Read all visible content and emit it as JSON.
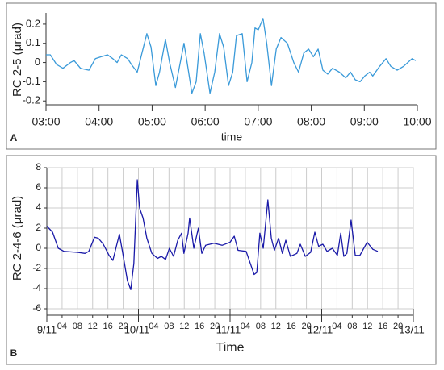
{
  "chart_data": [
    {
      "type": "line",
      "panel": "A",
      "ylabel": "RC 2-5 (μrad)",
      "xlabel": "time",
      "xlim": [
        3,
        10
      ],
      "ylim": [
        -0.22,
        0.25
      ],
      "xticks": [
        {
          "value": 3,
          "label": "03:00"
        },
        {
          "value": 4,
          "label": "04:00"
        },
        {
          "value": 5,
          "label": "05:00"
        },
        {
          "value": 6,
          "label": "06:00"
        },
        {
          "value": 7,
          "label": "07:00"
        },
        {
          "value": 8,
          "label": "08:00"
        },
        {
          "value": 9,
          "label": "09:00"
        },
        {
          "value": 10,
          "label": "10:00"
        }
      ],
      "yticks": [
        -0.2,
        -0.1,
        0,
        0.1,
        0.2
      ],
      "grid": false,
      "color": "#3a9ad9",
      "x": [
        3.0,
        3.08,
        3.2,
        3.32,
        3.46,
        3.53,
        3.65,
        3.81,
        3.93,
        4.04,
        4.16,
        4.26,
        4.34,
        4.42,
        4.54,
        4.61,
        4.72,
        4.81,
        4.9,
        4.98,
        5.07,
        5.14,
        5.25,
        5.33,
        5.44,
        5.53,
        5.6,
        5.66,
        5.75,
        5.83,
        5.91,
        5.98,
        6.09,
        6.18,
        6.27,
        6.35,
        6.44,
        6.52,
        6.59,
        6.7,
        6.79,
        6.88,
        6.94,
        7.0,
        7.09,
        7.16,
        7.25,
        7.34,
        7.43,
        7.55,
        7.67,
        7.76,
        7.86,
        7.95,
        8.04,
        8.13,
        8.22,
        8.31,
        8.4,
        8.53,
        8.65,
        8.74,
        8.83,
        8.92,
        9.01,
        9.1,
        9.16,
        9.29,
        9.41,
        9.5,
        9.62,
        9.74,
        9.9,
        9.97
      ],
      "values": [
        0.04,
        0.04,
        -0.01,
        -0.03,
        0,
        0.01,
        -0.03,
        -0.04,
        0.02,
        0.03,
        0.04,
        0.02,
        0,
        0.04,
        0.02,
        -0.01,
        -0.05,
        0.05,
        0.15,
        0.08,
        -0.12,
        -0.05,
        0.12,
        0,
        -0.13,
        0,
        0.1,
        0,
        -0.16,
        -0.1,
        0.15,
        0.05,
        -0.16,
        -0.05,
        0.15,
        0.08,
        -0.12,
        -0.05,
        0.14,
        0.15,
        -0.1,
        0,
        0.18,
        0.17,
        0.23,
        0.1,
        -0.12,
        0.07,
        0.13,
        0.1,
        0,
        -0.05,
        0.05,
        0.07,
        0.03,
        0.07,
        -0.04,
        -0.06,
        -0.03,
        -0.05,
        -0.08,
        -0.05,
        -0.09,
        -0.1,
        -0.07,
        -0.05,
        -0.07,
        -0.02,
        0.02,
        -0.02,
        -0.04,
        -0.02,
        0.02,
        0.01
      ]
    },
    {
      "type": "line",
      "panel": "B",
      "ylabel": "RC 2-4-6 (μrad)",
      "xlabel": "Time",
      "xlim": [
        0,
        96
      ],
      "ylim": [
        -6,
        8
      ],
      "xticks": [
        {
          "value": 0,
          "label": "9/11"
        },
        {
          "value": 4,
          "label": "04"
        },
        {
          "value": 8,
          "label": "08"
        },
        {
          "value": 12,
          "label": "12"
        },
        {
          "value": 16,
          "label": "16"
        },
        {
          "value": 20,
          "label": "20"
        },
        {
          "value": 24,
          "label": "10/11"
        },
        {
          "value": 28,
          "label": "04"
        },
        {
          "value": 32,
          "label": "08"
        },
        {
          "value": 36,
          "label": "12"
        },
        {
          "value": 40,
          "label": "16"
        },
        {
          "value": 44,
          "label": "20"
        },
        {
          "value": 48,
          "label": "11/11"
        },
        {
          "value": 52,
          "label": "04"
        },
        {
          "value": 56,
          "label": "08"
        },
        {
          "value": 60,
          "label": "12"
        },
        {
          "value": 64,
          "label": "16"
        },
        {
          "value": 68,
          "label": "20"
        },
        {
          "value": 72,
          "label": "12/11"
        },
        {
          "value": 76,
          "label": "04"
        },
        {
          "value": 80,
          "label": "08"
        },
        {
          "value": 84,
          "label": "12"
        },
        {
          "value": 88,
          "label": "16"
        },
        {
          "value": 92,
          "label": "20"
        },
        {
          "value": 96,
          "label": "13/11"
        }
      ],
      "yticks": [
        -6,
        -4,
        -2,
        0,
        2,
        4,
        6,
        8
      ],
      "grid": true,
      "color": "#1a1aa8",
      "x": [
        0,
        1.5,
        3,
        4.5,
        8,
        10,
        11,
        12.5,
        13.5,
        14.8,
        16.3,
        17.3,
        19.0,
        19.9,
        21.1,
        22.0,
        22.8,
        23.7,
        24.3,
        25.2,
        26.2,
        27.5,
        29.0,
        30.0,
        31.1,
        32.1,
        33.2,
        34.3,
        35.3,
        35.9,
        37.0,
        37.4,
        38.5,
        39.7,
        40.6,
        41.6,
        43.8,
        45.9,
        48.0,
        49.1,
        50.1,
        52.2,
        53.3,
        54.3,
        55.0,
        55.8,
        56.7,
        57.9,
        58.8,
        59.6,
        60.7,
        61.7,
        62.6,
        63.8,
        65.5,
        66.4,
        67.7,
        69.1,
        70.2,
        71.2,
        72.3,
        73.4,
        74.8,
        76.1,
        77.0,
        77.8,
        78.6,
        79.7,
        80.8,
        82.0,
        83.9,
        85.4,
        86.7
      ],
      "values": [
        2.2,
        1.6,
        0,
        -0.3,
        -0.4,
        -0.5,
        -0.3,
        1.1,
        1.0,
        0.4,
        -0.7,
        -1.2,
        1.4,
        -0.5,
        -3.2,
        -4.1,
        -1.5,
        6.8,
        4,
        3,
        1,
        -0.5,
        -1,
        -0.8,
        -1.1,
        0,
        -0.8,
        0.8,
        1.5,
        -0.5,
        1.5,
        3,
        0,
        2,
        -0.5,
        0.3,
        0.5,
        0.3,
        0.6,
        1.2,
        -0.2,
        -0.3,
        -1.5,
        -2.6,
        -2.4,
        1.5,
        0,
        4.8,
        1,
        -0.2,
        1,
        -0.5,
        0.8,
        -0.8,
        -0.5,
        0.4,
        -0.8,
        -0.4,
        1.6,
        0.2,
        0.4,
        -0.3,
        0,
        -0.7,
        1.5,
        -0.8,
        -0.5,
        2.8,
        -0.7,
        -0.7,
        0.6,
        -0.1,
        -0.3
      ]
    }
  ]
}
